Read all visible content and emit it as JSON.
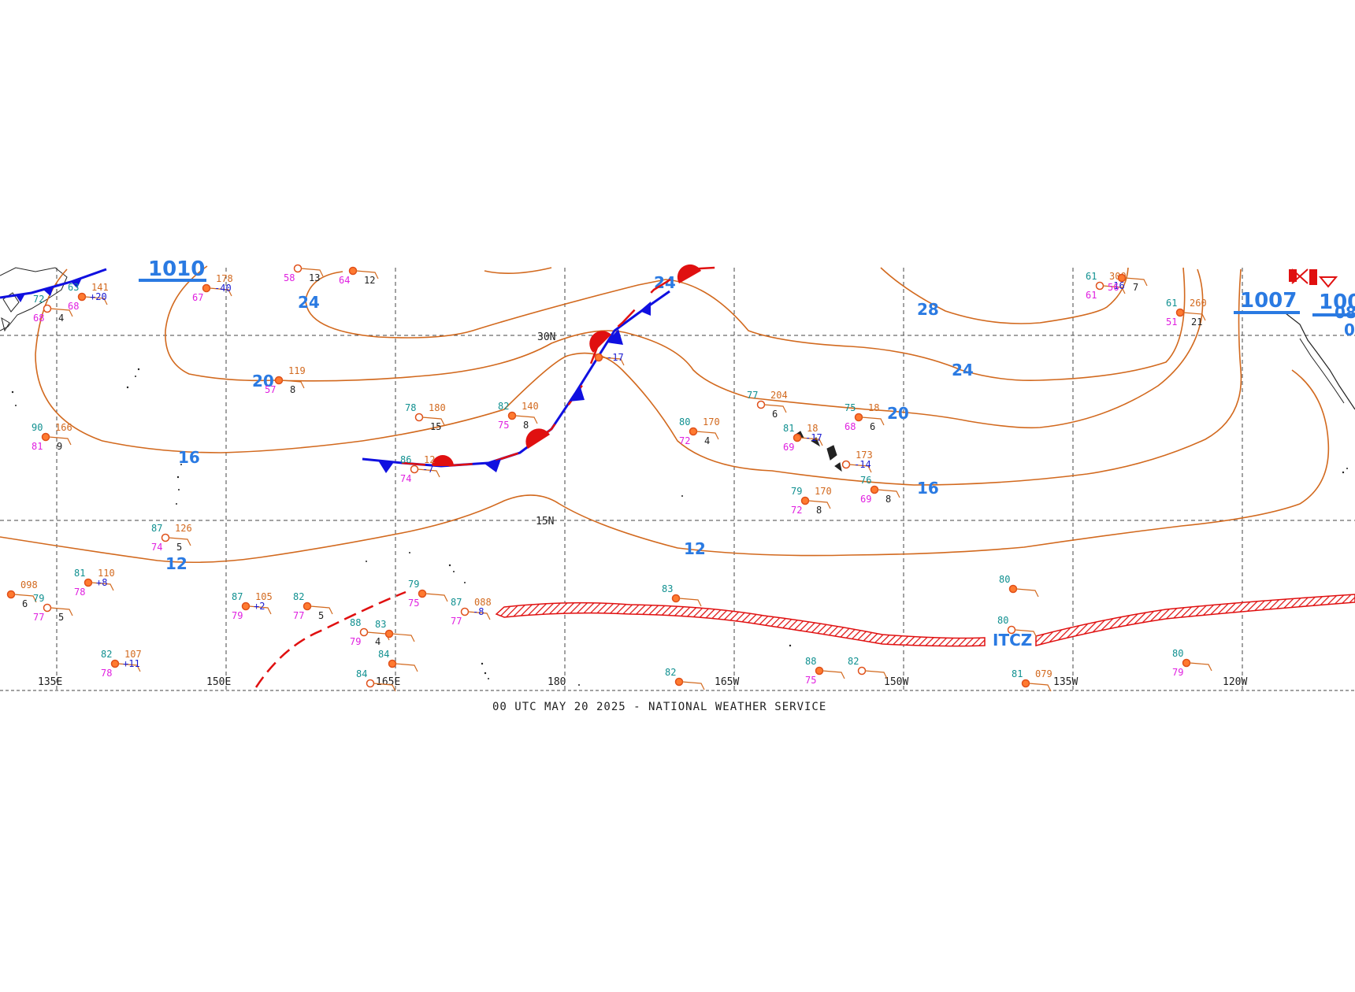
{
  "footer": "00 UTC MAY 20 2025 - NATIONAL WEATHER SERVICE",
  "longitude_labels": [
    "135E",
    "150E",
    "165E",
    "180",
    "165W",
    "150W",
    "135W",
    "120W"
  ],
  "latitude_labels": [
    "30N",
    "15N"
  ],
  "isotherm_labels": [
    {
      "text": "24"
    },
    {
      "text": "24"
    },
    {
      "text": "28"
    },
    {
      "text": "24"
    },
    {
      "text": "20"
    },
    {
      "text": "20"
    },
    {
      "text": "16"
    },
    {
      "text": "16"
    },
    {
      "text": "12"
    },
    {
      "text": "12"
    }
  ],
  "pressure_labels": [
    "1010",
    "1007",
    "100",
    "08",
    "0"
  ],
  "feature_labels": {
    "itcz": "ITCZ"
  },
  "stations": [
    {
      "t": "72",
      "d": "68",
      "p": "",
      "c": "4"
    },
    {
      "t": "63",
      "d": "68",
      "p": "141",
      "c": "+20"
    },
    {
      "t": "",
      "d": "67",
      "p": "178",
      "c": "-40"
    },
    {
      "t": "",
      "d": "58",
      "p": "",
      "c": "13"
    },
    {
      "t": "",
      "d": "64",
      "p": "",
      "c": "12"
    },
    {
      "t": "",
      "d": "57",
      "p": "119",
      "c": "8"
    },
    {
      "t": "78",
      "d": "",
      "p": "180",
      "c": "15"
    },
    {
      "t": "82",
      "d": "75",
      "p": "140",
      "c": "8"
    },
    {
      "t": "90",
      "d": "81",
      "p": "166",
      "c": "9"
    },
    {
      "t": "86",
      "d": "74",
      "p": "12",
      "c": "-7"
    },
    {
      "t": "",
      "d": "",
      "p": "",
      "c": "-17"
    },
    {
      "t": "80",
      "d": "72",
      "p": "170",
      "c": "4"
    },
    {
      "t": "77",
      "d": "",
      "p": "204",
      "c": "6"
    },
    {
      "t": "81",
      "d": "69",
      "p": "18",
      "c": "-17"
    },
    {
      "t": "75",
      "d": "68",
      "p": "18",
      "c": "6"
    },
    {
      "t": "",
      "d": "",
      "p": "173",
      "c": "-14"
    },
    {
      "t": "76",
      "d": "69",
      "p": "",
      "c": "8"
    },
    {
      "t": "79",
      "d": "72",
      "p": "170",
      "c": "8"
    },
    {
      "t": "61",
      "d": "61",
      "p": "300",
      "c": "-16"
    },
    {
      "t": "",
      "d": "56",
      "p": "",
      "c": "7"
    },
    {
      "t": "61",
      "d": "51",
      "p": "260",
      "c": "21"
    },
    {
      "t": "87",
      "d": "74",
      "p": "126",
      "c": "5"
    },
    {
      "t": "81",
      "d": "78",
      "p": "110",
      "c": "+8"
    },
    {
      "t": "",
      "d": "",
      "p": "098",
      "c": "6"
    },
    {
      "t": "79",
      "d": "77",
      "p": "",
      "c": "5"
    },
    {
      "t": "87",
      "d": "79",
      "p": "105",
      "c": "+2"
    },
    {
      "t": "82",
      "d": "77",
      "p": "",
      "c": "5"
    },
    {
      "t": "88",
      "d": "79",
      "p": "",
      "c": "4"
    },
    {
      "t": "83",
      "d": "",
      "p": "",
      "c": ""
    },
    {
      "t": "79",
      "d": "75",
      "p": "",
      "c": ""
    },
    {
      "t": "87",
      "d": "77",
      "p": "088",
      "c": "-8"
    },
    {
      "t": "83",
      "d": "",
      "p": "",
      "c": ""
    },
    {
      "t": "80",
      "d": "",
      "p": "",
      "c": ""
    },
    {
      "t": "80",
      "d": "",
      "p": "",
      "c": ""
    },
    {
      "t": "82",
      "d": "78",
      "p": "107",
      "c": "+11"
    },
    {
      "t": "84",
      "d": "",
      "p": "",
      "c": ""
    },
    {
      "t": "84",
      "d": "",
      "p": "",
      "c": ""
    },
    {
      "t": "82",
      "d": "",
      "p": "",
      "c": ""
    },
    {
      "t": "88",
      "d": "75",
      "p": "",
      "c": ""
    },
    {
      "t": "82",
      "d": "",
      "p": "",
      "c": ""
    },
    {
      "t": "81",
      "d": "",
      "p": "079",
      "c": ""
    },
    {
      "t": "80",
      "d": "79",
      "p": "",
      "c": ""
    }
  ],
  "colors": {
    "isotherm": "#d2691e",
    "label": "#2a7ae2",
    "cold_front": "#1010e0",
    "warm_front": "#e01010",
    "itcz": "#e01010",
    "grid": "#444444",
    "temp": "#109090",
    "dewpoint": "#e020e0",
    "pressure": "#d2691e",
    "change": "#1a1ad0"
  }
}
